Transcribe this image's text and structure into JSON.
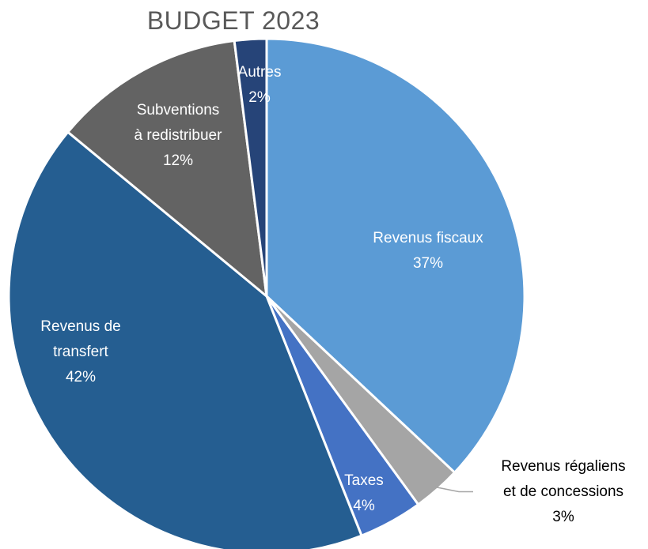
{
  "chart_data": {
    "type": "pie",
    "title": "BUDGET 2023",
    "slices": [
      {
        "label_lines": [
          "Revenus fiscaux"
        ],
        "value": 37,
        "value_label": "37%",
        "color": "#5b9bd5",
        "label_color": "#ffffff",
        "label_outside": false
      },
      {
        "label_lines": [
          "Revenus régaliens",
          "et de concessions"
        ],
        "value": 3,
        "value_label": "3%",
        "color": "#a5a5a5",
        "label_color": "#000000",
        "label_outside": true
      },
      {
        "label_lines": [
          "Taxes"
        ],
        "value": 4,
        "value_label": "4%",
        "color": "#4472c4",
        "label_color": "#ffffff",
        "label_outside": false
      },
      {
        "label_lines": [
          "Revenus de",
          "transfert"
        ],
        "value": 42,
        "value_label": "42%",
        "color": "#255e91",
        "label_color": "#ffffff",
        "label_outside": false
      },
      {
        "label_lines": [
          "Subventions",
          "à redistribuer"
        ],
        "value": 12,
        "value_label": "12%",
        "color": "#636363",
        "label_color": "#ffffff",
        "label_outside": false
      },
      {
        "label_lines": [
          "Autres"
        ],
        "value": 2,
        "value_label": "2%",
        "color": "#264478",
        "label_color": "#ffffff",
        "label_outside": false
      }
    ]
  }
}
